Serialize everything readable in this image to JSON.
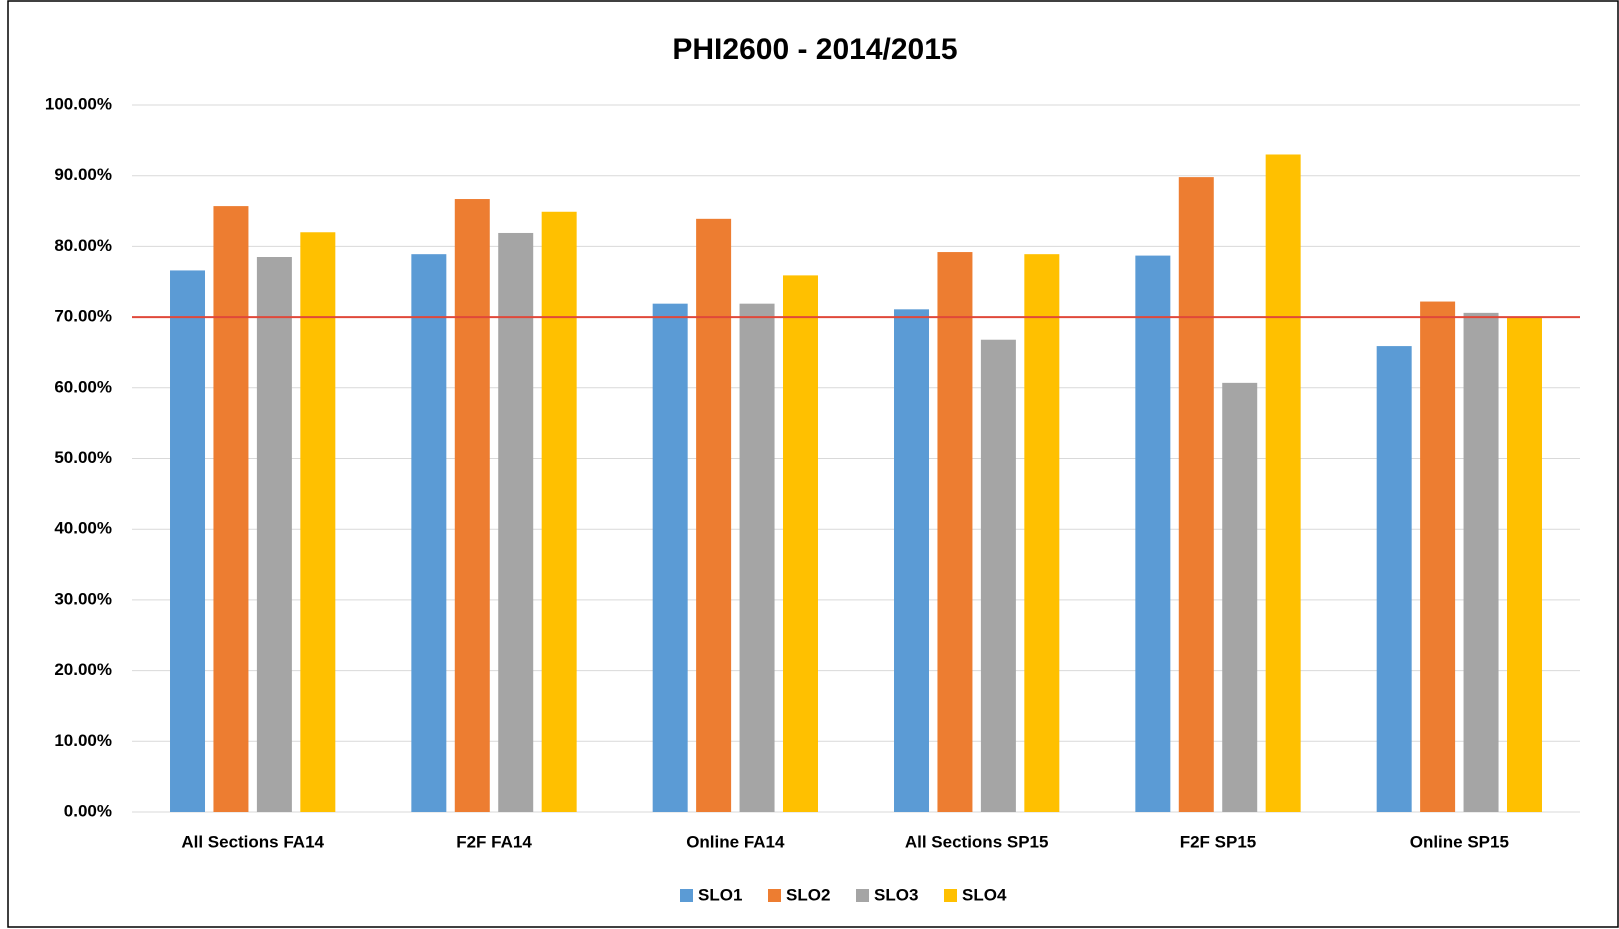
{
  "chart_data": {
    "type": "bar",
    "title": "PHI2600 - 2014/2015",
    "categories": [
      "All Sections FA14",
      "F2F FA14",
      "Online FA14",
      "All Sections SP15",
      "F2F SP15",
      "Online SP15"
    ],
    "series": [
      {
        "name": "SLO1",
        "color": "#5b9bd5",
        "values": [
          76.6,
          78.9,
          71.9,
          71.1,
          78.7,
          65.9
        ]
      },
      {
        "name": "SLO2",
        "color": "#ed7d31",
        "values": [
          85.7,
          86.7,
          83.9,
          79.2,
          89.8,
          72.2
        ]
      },
      {
        "name": "SLO3",
        "color": "#a5a5a5",
        "values": [
          78.5,
          81.9,
          71.9,
          66.8,
          60.7,
          70.6
        ]
      },
      {
        "name": "SLO4",
        "color": "#ffc000",
        "values": [
          82.0,
          84.9,
          75.9,
          78.9,
          93.0,
          70.0
        ]
      }
    ],
    "ylim": [
      0,
      100
    ],
    "yticks": [
      {
        "value": 0,
        "label": "0.00%"
      },
      {
        "value": 10,
        "label": "10.00%"
      },
      {
        "value": 20,
        "label": "20.00%"
      },
      {
        "value": 30,
        "label": "30.00%"
      },
      {
        "value": 40,
        "label": "40.00%"
      },
      {
        "value": 50,
        "label": "50.00%"
      },
      {
        "value": 60,
        "label": "60.00%"
      },
      {
        "value": 70,
        "label": "70.00%"
      },
      {
        "value": 80,
        "label": "80.00%"
      },
      {
        "value": 90,
        "label": "90.00%"
      },
      {
        "value": 100,
        "label": "100.00%"
      }
    ],
    "grid": true,
    "legend": "bottom",
    "reference_line": {
      "value": 70,
      "color": "#e0483a"
    }
  }
}
